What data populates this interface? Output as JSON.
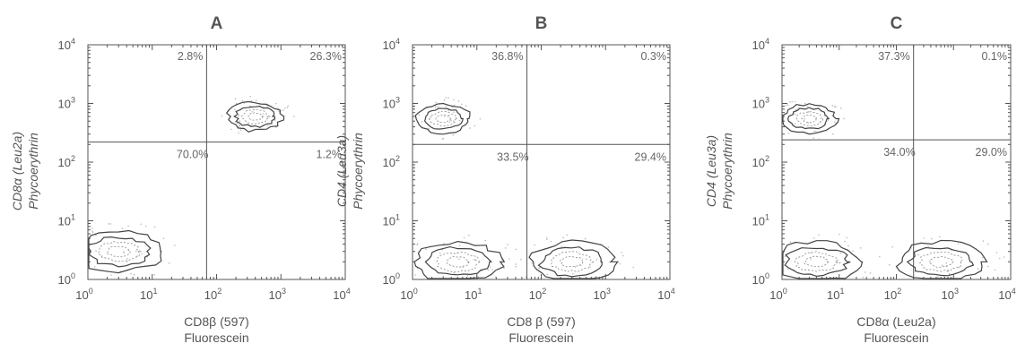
{
  "chart_data": [
    {
      "type": "contour",
      "title": "A",
      "xlabel_main": "CD8β (597)",
      "xlabel_sub": "Fluorescein",
      "ylabel_main": "CD8α (Leu2a)",
      "ylabel_sub": "Phycoerythrin",
      "xscale": "log",
      "yscale": "log",
      "xlim": [
        1,
        10000
      ],
      "ylim": [
        1,
        10000
      ],
      "x_ticks": [
        "10^0",
        "10^1",
        "10^2",
        "10^3",
        "10^4"
      ],
      "y_ticks": [
        "10^0",
        "10^1",
        "10^2",
        "10^3",
        "10^4"
      ],
      "gate": {
        "x": 70,
        "y": 220
      },
      "quadrants": {
        "upper_left": "2.8%",
        "upper_right": "26.3%",
        "lower_left": "70.0%",
        "lower_right": "1.2%"
      },
      "populations": [
        {
          "x": 400,
          "y": 600
        },
        {
          "x": 3,
          "y": 3
        }
      ]
    },
    {
      "type": "contour",
      "title": "B",
      "xlabel_main": "CD8 β (597)",
      "xlabel_sub": "Fluorescein",
      "ylabel_main": "CD4 (Leu3a)",
      "ylabel_sub": "Phycoerythrin",
      "xscale": "log",
      "yscale": "log",
      "xlim": [
        1,
        10000
      ],
      "ylim": [
        1,
        10000
      ],
      "x_ticks": [
        "10^0",
        "10^1",
        "10^2",
        "10^3",
        "10^4"
      ],
      "y_ticks": [
        "10^0",
        "10^1",
        "10^2",
        "10^3",
        "10^4"
      ],
      "gate": {
        "x": 60,
        "y": 200
      },
      "quadrants": {
        "upper_left": "36.8%",
        "upper_right": "0.3%",
        "lower_left": "33.5%",
        "lower_right": "29.4%"
      },
      "populations": [
        {
          "x": 3,
          "y": 550
        },
        {
          "x": 5,
          "y": 2
        },
        {
          "x": 300,
          "y": 2
        }
      ]
    },
    {
      "type": "contour",
      "title": "C",
      "xlabel_main": "CD8α (Leu2a)",
      "xlabel_sub": "Fluorescein",
      "ylabel_main": "CD4 (Leu3a)",
      "ylabel_sub": "Phycoerythrin",
      "xscale": "log",
      "yscale": "log",
      "xlim": [
        1,
        10000
      ],
      "ylim": [
        1,
        10000
      ],
      "x_ticks": [
        "10^0",
        "10^1",
        "10^2",
        "10^3",
        "10^4"
      ],
      "y_ticks": [
        "10^0",
        "10^1",
        "10^2",
        "10^3",
        "10^4"
      ],
      "gate": {
        "x": 200,
        "y": 240
      },
      "quadrants": {
        "upper_left": "37.3%",
        "upper_right": "0.1%",
        "lower_left": "34.0%",
        "lower_right": "29.0%"
      },
      "populations": [
        {
          "x": 3,
          "y": 550
        },
        {
          "x": 4,
          "y": 2
        },
        {
          "x": 600,
          "y": 2
        }
      ]
    }
  ]
}
